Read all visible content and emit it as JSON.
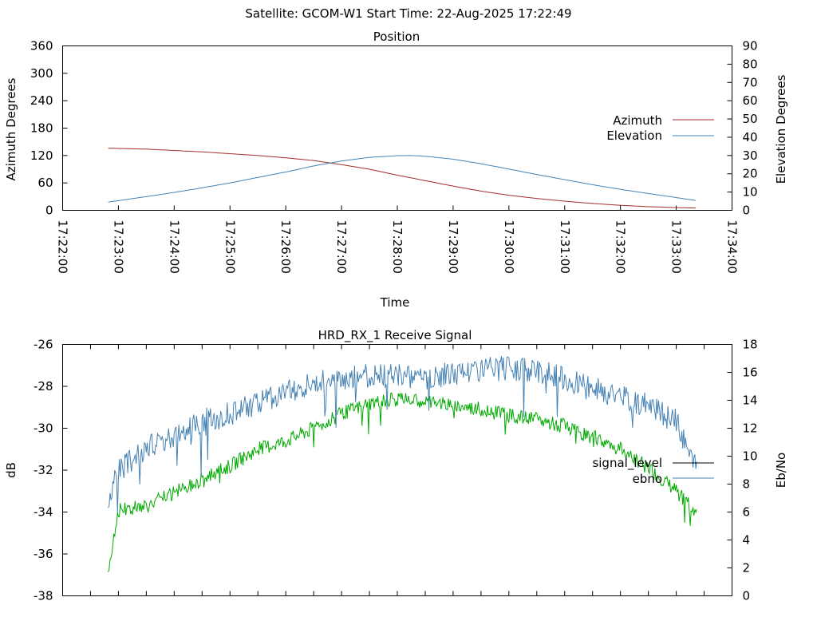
{
  "header": {
    "title": "Satellite: GCOM-W1    Start Time: 22-Aug-2025 17:22:49"
  },
  "chart_data": [
    {
      "type": "line",
      "title": "Position",
      "xlabel": "Time",
      "ylabel": "Azimuth Degrees",
      "y2label": "Elevation Degrees",
      "xlim": [
        "17:22:00",
        "17:34:00"
      ],
      "ylim": [
        0,
        360
      ],
      "y2lim": [
        0,
        90
      ],
      "x_ticks": [
        "17:22:00",
        "17:23:00",
        "17:24:00",
        "17:25:00",
        "17:26:00",
        "17:27:00",
        "17:28:00",
        "17:29:00",
        "17:30:00",
        "17:31:00",
        "17:32:00",
        "17:33:00",
        "17:34:00"
      ],
      "y_ticks": [
        "0",
        "60",
        "120",
        "180",
        "240",
        "300",
        "360"
      ],
      "y2_ticks": [
        "0",
        "10",
        "20",
        "30",
        "40",
        "50",
        "60",
        "70",
        "80",
        "90"
      ],
      "grid": false,
      "legend": "right",
      "series": [
        {
          "name": "Azimuth",
          "axis": "y",
          "color": "#a52a2a",
          "x": [
            "17:22:49",
            "17:23:30",
            "17:24:00",
            "17:24:30",
            "17:25:00",
            "17:25:30",
            "17:26:00",
            "17:26:30",
            "17:27:00",
            "17:27:30",
            "17:28:00",
            "17:28:30",
            "17:29:00",
            "17:29:30",
            "17:30:00",
            "17:30:30",
            "17:31:00",
            "17:31:30",
            "17:32:00",
            "17:32:30",
            "17:33:00",
            "17:33:22"
          ],
          "y": [
            136,
            134,
            131,
            128,
            124,
            120,
            115,
            109,
            100,
            90,
            77,
            65,
            53,
            42,
            33,
            26,
            20,
            15,
            11,
            8,
            6,
            5
          ]
        },
        {
          "name": "Elevation",
          "axis": "y2",
          "color": "#4682b4",
          "x": [
            "17:22:49",
            "17:23:30",
            "17:24:00",
            "17:24:30",
            "17:25:00",
            "17:25:30",
            "17:26:00",
            "17:26:30",
            "17:27:00",
            "17:27:30",
            "17:28:00",
            "17:28:15",
            "17:28:30",
            "17:29:00",
            "17:29:30",
            "17:30:00",
            "17:30:30",
            "17:31:00",
            "17:31:30",
            "17:32:00",
            "17:32:30",
            "17:33:00",
            "17:33:22"
          ],
          "y": [
            4.5,
            7.5,
            9.8,
            12.3,
            15,
            18,
            21,
            24.3,
            27,
            29,
            29.9,
            30,
            29.6,
            28,
            25.5,
            22.6,
            19.6,
            16.8,
            14,
            11.5,
            9.2,
            7,
            5.3
          ]
        }
      ]
    },
    {
      "type": "line",
      "title": "HRD_RX_1 Receive Signal",
      "xlabel": "",
      "ylabel": "dB",
      "y2label": "Eb/No",
      "xlim": [
        "17:22:00",
        "17:34:00"
      ],
      "ylim": [
        -38,
        -26
      ],
      "y2lim": [
        0,
        18
      ],
      "y_ticks": [
        "-38",
        "-36",
        "-34",
        "-32",
        "-30",
        "-28",
        "-26"
      ],
      "y2_ticks": [
        "0",
        "2",
        "4",
        "6",
        "8",
        "10",
        "12",
        "14",
        "16",
        "18"
      ],
      "grid": false,
      "legend": "right",
      "series": [
        {
          "name": "signal_level",
          "axis": "y",
          "color": "#00aa00",
          "legend_color": "#000000",
          "x": [
            "17:22:49",
            "17:23:00",
            "17:23:30",
            "17:24:00",
            "17:24:30",
            "17:25:00",
            "17:25:30",
            "17:26:00",
            "17:26:30",
            "17:27:00",
            "17:27:30",
            "17:28:00",
            "17:28:30",
            "17:29:00",
            "17:29:30",
            "17:30:00",
            "17:30:30",
            "17:31:00",
            "17:31:30",
            "17:32:00",
            "17:32:30",
            "17:33:00",
            "17:33:22"
          ],
          "y": [
            -36.8,
            -33.9,
            -33.7,
            -33.1,
            -32.4,
            -31.8,
            -31.0,
            -30.6,
            -30.0,
            -29.3,
            -28.8,
            -28.6,
            -28.7,
            -28.9,
            -29.1,
            -29.4,
            -29.6,
            -29.9,
            -30.4,
            -31.0,
            -31.9,
            -33.0,
            -34.0
          ]
        },
        {
          "name": "ebno",
          "axis": "y2",
          "color": "#4682b4",
          "x": [
            "17:22:49",
            "17:23:00",
            "17:23:30",
            "17:24:00",
            "17:24:30",
            "17:25:00",
            "17:25:30",
            "17:26:00",
            "17:26:30",
            "17:27:00",
            "17:27:30",
            "17:28:00",
            "17:28:30",
            "17:29:00",
            "17:29:30",
            "17:30:00",
            "17:30:30",
            "17:31:00",
            "17:31:30",
            "17:32:00",
            "17:32:30",
            "17:33:00",
            "17:33:22"
          ],
          "y": [
            6.5,
            9.0,
            10.5,
            11.5,
            12.5,
            13.0,
            13.8,
            14.5,
            15.2,
            15.6,
            15.8,
            15.8,
            15.6,
            15.9,
            16.2,
            16.3,
            16.1,
            15.5,
            14.8,
            14.3,
            13.6,
            12.5,
            9.0
          ]
        }
      ]
    }
  ]
}
